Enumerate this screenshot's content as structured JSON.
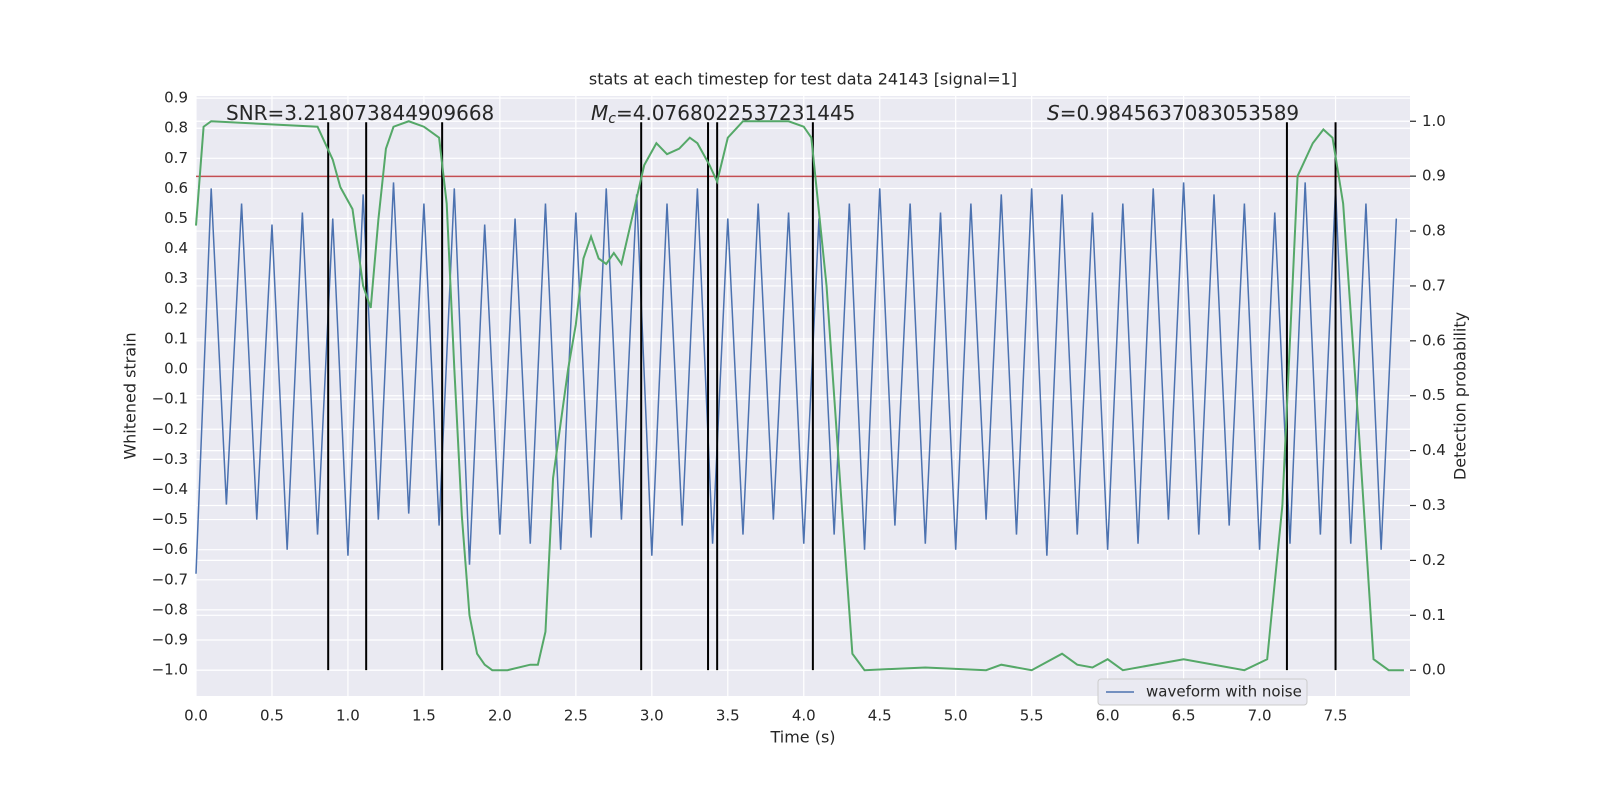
{
  "chart_data": {
    "type": "line",
    "title": "stats at each timestep for test data 24143 [signal=1]",
    "xlabel": "Time (s)",
    "ylabel": "Whitened strain",
    "y2label": "Detection probability",
    "xlim": [
      0,
      7.99
    ],
    "ylim": [
      -1.086,
      0.907
    ],
    "y2lim": [
      -0.047,
      1.046
    ],
    "xticks": [
      {
        "value": 0,
        "label": "0.0"
      },
      0.5,
      {
        "value": 1,
        "label": "1.0"
      },
      1.5,
      {
        "value": 2,
        "label": "2.0"
      },
      2.5,
      {
        "value": 3,
        "label": "3.0"
      },
      3.5,
      {
        "value": 4,
        "label": "4.0"
      },
      4.5,
      {
        "value": 5,
        "label": "5.0"
      },
      5.5,
      {
        "value": 6,
        "label": "6.0"
      },
      6.5,
      {
        "value": 7,
        "label": "7.0"
      },
      7.5
    ],
    "yticks": [
      0.9,
      0.8,
      0.7,
      0.6,
      0.5,
      0.4,
      0.3,
      0.2,
      0.1,
      {
        "value": 0,
        "label": "0.0"
      },
      {
        "value": -0.1,
        "label": "−0.1"
      },
      {
        "value": -0.2,
        "label": "−0.2"
      },
      {
        "value": -0.3,
        "label": "−0.3"
      },
      {
        "value": -0.4,
        "label": "−0.4"
      },
      {
        "value": -0.5,
        "label": "−0.5"
      },
      {
        "value": -0.6,
        "label": "−0.6"
      },
      {
        "value": -0.7,
        "label": "−0.7"
      },
      {
        "value": -0.8,
        "label": "−0.8"
      },
      {
        "value": -0.9,
        "label": "−0.9"
      },
      {
        "value": -1,
        "label": "−1.0"
      }
    ],
    "y2ticks": [
      {
        "value": 1,
        "label": "1.0"
      },
      0.9,
      0.8,
      0.7,
      0.6,
      0.5,
      0.4,
      0.3,
      0.2,
      0.1,
      {
        "value": 0,
        "label": "0.0"
      }
    ],
    "grid": true,
    "legend": "lower right",
    "series": [
      {
        "name": "waveform with noise",
        "color": "#4c72b0",
        "x": [
          0,
          0.1,
          0.2,
          0.3,
          0.4,
          0.5,
          0.6,
          0.7,
          0.8,
          0.9,
          1,
          1.1,
          1.2,
          1.3,
          1.4,
          1.5,
          1.6,
          1.7,
          1.8,
          1.9,
          2,
          2.1,
          2.2,
          2.3,
          2.4,
          2.5,
          2.6,
          2.7,
          2.8,
          2.9,
          3,
          3.1,
          3.2,
          3.3,
          3.4,
          3.5,
          3.6,
          3.7,
          3.8,
          3.9,
          4,
          4.1,
          4.2,
          4.3,
          4.4,
          4.5,
          4.6,
          4.7,
          4.8,
          4.9,
          5,
          5.1,
          5.2,
          5.3,
          5.4,
          5.5,
          5.6,
          5.7,
          5.8,
          5.9,
          6,
          6.1,
          6.2,
          6.3,
          6.4,
          6.5,
          6.6,
          6.7,
          6.8,
          6.9,
          7,
          7.1,
          7.2,
          7.3,
          7.4,
          7.5,
          7.6,
          7.7,
          7.8,
          7.9
        ],
        "values": [
          -0.68,
          0.6,
          -0.45,
          0.55,
          -0.5,
          0.48,
          -0.6,
          0.52,
          -0.55,
          0.5,
          -0.62,
          0.58,
          -0.5,
          0.62,
          -0.48,
          0.55,
          -0.52,
          0.6,
          -0.65,
          0.48,
          -0.55,
          0.5,
          -0.58,
          0.55,
          -0.6,
          0.52,
          -0.56,
          0.6,
          -0.5,
          0.58,
          -0.62,
          0.55,
          -0.52,
          0.6,
          -0.58,
          0.5,
          -0.55,
          0.55,
          -0.5,
          0.52,
          -0.58,
          0.5,
          -0.55,
          0.55,
          -0.6,
          0.6,
          -0.52,
          0.55,
          -0.58,
          0.52,
          -0.6,
          0.55,
          -0.5,
          0.58,
          -0.55,
          0.6,
          -0.62,
          0.58,
          -0.55,
          0.52,
          -0.6,
          0.55,
          -0.58,
          0.6,
          -0.5,
          0.62,
          -0.55,
          0.58,
          -0.52,
          0.55,
          -0.6,
          0.52,
          -0.58,
          0.62,
          -0.55,
          0.6,
          -0.58,
          0.55,
          -0.6,
          0.5
        ]
      }
    ],
    "detection_probability": {
      "color": "#55a868",
      "axis": "y2",
      "x": [
        0,
        0.05,
        0.1,
        0.8,
        0.9,
        0.95,
        1.03,
        1.1,
        1.15,
        1.2,
        1.25,
        1.3,
        1.4,
        1.5,
        1.6,
        1.65,
        1.7,
        1.75,
        1.8,
        1.85,
        1.9,
        1.95,
        2.05,
        2.2,
        2.25,
        2.3,
        2.35,
        2.45,
        2.5,
        2.55,
        2.6,
        2.65,
        2.7,
        2.75,
        2.8,
        2.85,
        2.95,
        3.03,
        3.1,
        3.18,
        3.25,
        3.3,
        3.38,
        3.43,
        3.5,
        3.6,
        3.9,
        4,
        4.05,
        4.15,
        4.25,
        4.32,
        4.4,
        4.8,
        5.2,
        5.3,
        5.5,
        5.7,
        5.8,
        5.9,
        6,
        6.1,
        6.5,
        6.7,
        6.9,
        7.05,
        7.15,
        7.25,
        7.35,
        7.42,
        7.48,
        7.55,
        7.65,
        7.75,
        7.85,
        7.95
      ],
      "values": [
        0.81,
        0.99,
        1,
        0.99,
        0.93,
        0.88,
        0.84,
        0.7,
        0.66,
        0.82,
        0.95,
        0.99,
        1,
        0.99,
        0.97,
        0.85,
        0.55,
        0.28,
        0.1,
        0.03,
        0.01,
        0,
        0,
        0.01,
        0.01,
        0.07,
        0.35,
        0.55,
        0.63,
        0.75,
        0.79,
        0.75,
        0.74,
        0.76,
        0.74,
        0.8,
        0.92,
        0.96,
        0.94,
        0.95,
        0.97,
        0.96,
        0.92,
        0.89,
        0.97,
        1,
        1,
        0.99,
        0.97,
        0.7,
        0.3,
        0.03,
        0,
        0.005,
        0,
        0.01,
        0,
        0.03,
        0.01,
        0.005,
        0.02,
        0,
        0.02,
        0.01,
        0,
        0.02,
        0.3,
        0.9,
        0.96,
        0.985,
        0.97,
        0.85,
        0.45,
        0.02,
        0,
        0
      ]
    },
    "hline": {
      "value": 0.64,
      "color": "#c44e52"
    },
    "vlines": [
      0.87,
      1.12,
      1.62,
      2.93,
      3.37,
      3.43,
      4.06,
      7.18,
      7.5
    ],
    "vline_span": [
      -1,
      0.82
    ],
    "annotations": [
      {
        "text": "SNR=3.218073844909668"
      },
      {
        "symbol": "M",
        "subscript": "c",
        "text": "=4.0768022537231445"
      },
      {
        "symbol": "S",
        "text": "=0.9845637083053589"
      }
    ]
  }
}
